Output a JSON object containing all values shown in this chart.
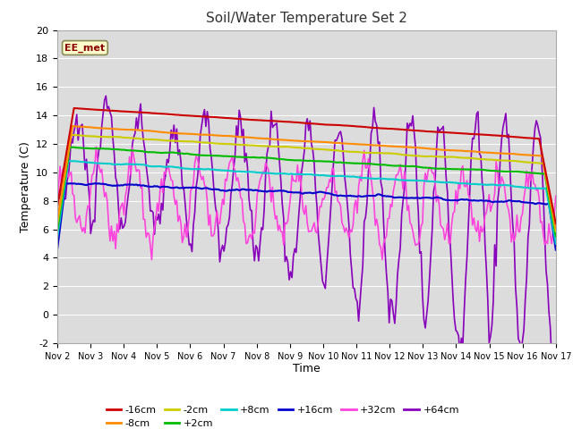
{
  "title": "Soil/Water Temperature Set 2",
  "xlabel": "Time",
  "ylabel": "Temperature (C)",
  "ylim": [
    -2,
    20
  ],
  "annotation": "EE_met",
  "series": {
    "-16cm": {
      "color": "#cc0000"
    },
    "-8cm": {
      "color": "#ff8c00"
    },
    "-2cm": {
      "color": "#cccc00"
    },
    "+2cm": {
      "color": "#00bb00"
    },
    "+8cm": {
      "color": "#00cccc"
    },
    "+16cm": {
      "color": "#0000cc"
    },
    "+32cm": {
      "color": "#ff44dd"
    },
    "+64cm": {
      "color": "#8800bb"
    }
  },
  "xtick_labels": [
    "Nov 2",
    "Nov 3",
    "Nov 4",
    "Nov 5",
    "Nov 6",
    "Nov 7",
    "Nov 8",
    "Nov 9",
    "Nov 10",
    "Nov 11",
    "Nov 12",
    "Nov 13",
    "Nov 14",
    "Nov 15",
    "Nov 16",
    "Nov 17"
  ],
  "legend_row1": [
    "-16cm",
    "-8cm",
    "-2cm",
    "+2cm",
    "+8cm",
    "+16cm"
  ],
  "legend_row2": [
    "+32cm",
    "+64cm"
  ],
  "plot_bg": "#dcdcdc",
  "fig_bg": "#ffffff",
  "grid_color": "#ffffff"
}
